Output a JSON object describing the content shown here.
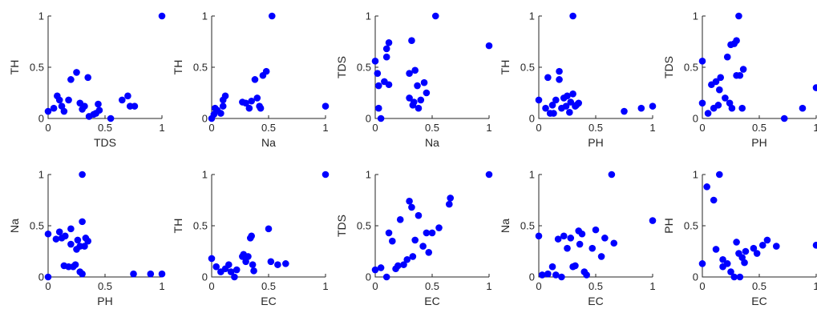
{
  "colors": {
    "marker": "#0000FF",
    "axis": "#262626",
    "background": "#FFFFFF"
  },
  "chart_data": [
    {
      "type": "scatter",
      "xlabel": "TDS",
      "ylabel": "TH",
      "xlim": [
        0,
        1
      ],
      "ylim": [
        0,
        1
      ],
      "xticks": [
        "0",
        "0.5",
        "1"
      ],
      "yticks": [
        "0",
        "0.5",
        "1"
      ],
      "points": [
        [
          0,
          0.07
        ],
        [
          0.05,
          0.1
        ],
        [
          0.08,
          0.22
        ],
        [
          0.1,
          0.18
        ],
        [
          0.12,
          0.12
        ],
        [
          0.14,
          0.07
        ],
        [
          0.18,
          0.18
        ],
        [
          0.2,
          0.38
        ],
        [
          0.25,
          0.45
        ],
        [
          0.28,
          0.15
        ],
        [
          0.3,
          0.09
        ],
        [
          0.32,
          0.12
        ],
        [
          0.35,
          0.4
        ],
        [
          0.36,
          0.02
        ],
        [
          0.4,
          0.04
        ],
        [
          0.42,
          0.05
        ],
        [
          0.44,
          0.14
        ],
        [
          0.45,
          0.08
        ],
        [
          0.55,
          0
        ],
        [
          0.65,
          0.18
        ],
        [
          0.7,
          0.22
        ],
        [
          0.72,
          0.12
        ],
        [
          0.76,
          0.12
        ],
        [
          1,
          1
        ]
      ]
    },
    {
      "type": "scatter",
      "xlabel": "Na",
      "ylabel": "TH",
      "xlim": [
        0,
        1
      ],
      "ylim": [
        0,
        1
      ],
      "xticks": [
        "0",
        "0.5",
        "1"
      ],
      "yticks": [
        "0",
        "0.5",
        "1"
      ],
      "points": [
        [
          0,
          0
        ],
        [
          0.02,
          0.04
        ],
        [
          0.03,
          0.1
        ],
        [
          0.05,
          0.08
        ],
        [
          0.08,
          0.05
        ],
        [
          0.1,
          0.18
        ],
        [
          0.12,
          0.22
        ],
        [
          0.1,
          0.12
        ],
        [
          0.27,
          0.16
        ],
        [
          0.3,
          0.15
        ],
        [
          0.33,
          0.1
        ],
        [
          0.35,
          0.17
        ],
        [
          0.38,
          0.38
        ],
        [
          0.4,
          0.2
        ],
        [
          0.42,
          0.12
        ],
        [
          0.43,
          0.1
        ],
        [
          0.45,
          0.42
        ],
        [
          0.48,
          0.46
        ],
        [
          0.53,
          1
        ],
        [
          1,
          0.12
        ]
      ]
    },
    {
      "type": "scatter",
      "xlabel": "Na",
      "ylabel": "TDS",
      "xlim": [
        0,
        1
      ],
      "ylim": [
        0,
        1
      ],
      "xticks": [
        "0",
        "0.5",
        "1"
      ],
      "yticks": [
        "0",
        "0.5",
        "1"
      ],
      "points": [
        [
          0,
          0.56
        ],
        [
          0.02,
          0.44
        ],
        [
          0.03,
          0.32
        ],
        [
          0.03,
          0.1
        ],
        [
          0.05,
          0
        ],
        [
          0.08,
          0.36
        ],
        [
          0.1,
          0.6
        ],
        [
          0.1,
          0.68
        ],
        [
          0.12,
          0.74
        ],
        [
          0.12,
          0.33
        ],
        [
          0.3,
          0.44
        ],
        [
          0.3,
          0.2
        ],
        [
          0.32,
          0.76
        ],
        [
          0.33,
          0.13
        ],
        [
          0.34,
          0.16
        ],
        [
          0.35,
          0.47
        ],
        [
          0.37,
          0.32
        ],
        [
          0.38,
          0.1
        ],
        [
          0.4,
          0.18
        ],
        [
          0.43,
          0.35
        ],
        [
          0.45,
          0.25
        ],
        [
          0.53,
          1
        ],
        [
          1,
          0.71
        ]
      ]
    },
    {
      "type": "scatter",
      "xlabel": "PH",
      "ylabel": "TH",
      "xlim": [
        0,
        1
      ],
      "ylim": [
        0,
        1
      ],
      "xticks": [
        "0",
        "0.5",
        "1"
      ],
      "yticks": [
        "0",
        "0.5",
        "1"
      ],
      "points": [
        [
          0,
          0.18
        ],
        [
          0.06,
          0.1
        ],
        [
          0.08,
          0.4
        ],
        [
          0.1,
          0.05
        ],
        [
          0.12,
          0.13
        ],
        [
          0.13,
          0.05
        ],
        [
          0.15,
          0.18
        ],
        [
          0.18,
          0.46
        ],
        [
          0.18,
          0.38
        ],
        [
          0.2,
          0.1
        ],
        [
          0.22,
          0.2
        ],
        [
          0.24,
          0.12
        ],
        [
          0.25,
          0.22
        ],
        [
          0.27,
          0.06
        ],
        [
          0.28,
          0.16
        ],
        [
          0.3,
          1
        ],
        [
          0.3,
          0.24
        ],
        [
          0.32,
          0.12
        ],
        [
          0.33,
          0.13
        ],
        [
          0.35,
          0.15
        ],
        [
          0.75,
          0.07
        ],
        [
          0.9,
          0.1
        ],
        [
          1,
          0.12
        ]
      ]
    },
    {
      "type": "scatter",
      "xlabel": "PH",
      "ylabel": "TDS",
      "xlim": [
        0,
        1
      ],
      "ylim": [
        0,
        1
      ],
      "xticks": [
        "0",
        "0.5",
        "1"
      ],
      "yticks": [
        "0",
        "0.5",
        "1"
      ],
      "points": [
        [
          0,
          0.56
        ],
        [
          0,
          0.15
        ],
        [
          0.05,
          0.05
        ],
        [
          0.08,
          0.33
        ],
        [
          0.1,
          0.1
        ],
        [
          0.12,
          0.36
        ],
        [
          0.14,
          0.13
        ],
        [
          0.15,
          0.28
        ],
        [
          0.16,
          0.4
        ],
        [
          0.2,
          0.2
        ],
        [
          0.22,
          0.6
        ],
        [
          0.24,
          0.15
        ],
        [
          0.25,
          0.72
        ],
        [
          0.26,
          0.1
        ],
        [
          0.28,
          0.73
        ],
        [
          0.3,
          0.42
        ],
        [
          0.3,
          0.76
        ],
        [
          0.32,
          1
        ],
        [
          0.33,
          0.42
        ],
        [
          0.35,
          0.1
        ],
        [
          0.36,
          0.48
        ],
        [
          0.72,
          0
        ],
        [
          0.88,
          0.1
        ],
        [
          1,
          0.3
        ]
      ]
    },
    {
      "type": "scatter",
      "xlabel": "PH",
      "ylabel": "Na",
      "xlim": [
        0,
        1
      ],
      "ylim": [
        0,
        1
      ],
      "xticks": [
        "0",
        "0.5",
        "1"
      ],
      "yticks": [
        "0",
        "0.5",
        "1"
      ],
      "points": [
        [
          0,
          0.42
        ],
        [
          0,
          0
        ],
        [
          0.07,
          0.37
        ],
        [
          0.1,
          0.44
        ],
        [
          0.12,
          0.38
        ],
        [
          0.15,
          0.4
        ],
        [
          0.14,
          0.11
        ],
        [
          0.18,
          0.1
        ],
        [
          0.2,
          0.32
        ],
        [
          0.2,
          0.47
        ],
        [
          0.22,
          0.1
        ],
        [
          0.24,
          0.12
        ],
        [
          0.25,
          0.27
        ],
        [
          0.26,
          0.36
        ],
        [
          0.28,
          0.3
        ],
        [
          0.28,
          0.05
        ],
        [
          0.3,
          1
        ],
        [
          0.3,
          0.03
        ],
        [
          0.3,
          0.54
        ],
        [
          0.32,
          0.3
        ],
        [
          0.33,
          0.38
        ],
        [
          0.35,
          0.35
        ],
        [
          0.75,
          0.03
        ],
        [
          0.9,
          0.03
        ],
        [
          1,
          0.03
        ]
      ]
    },
    {
      "type": "scatter",
      "xlabel": "EC",
      "ylabel": "TH",
      "xlim": [
        0,
        1
      ],
      "ylim": [
        0,
        1
      ],
      "xticks": [
        "0",
        "0.5",
        "1"
      ],
      "yticks": [
        "0",
        "0.5",
        "1"
      ],
      "points": [
        [
          0,
          0.18
        ],
        [
          0.04,
          0.1
        ],
        [
          0.08,
          0.05
        ],
        [
          0.12,
          0.08
        ],
        [
          0.15,
          0.12
        ],
        [
          0.17,
          0.05
        ],
        [
          0.2,
          0
        ],
        [
          0.22,
          0.07
        ],
        [
          0.27,
          0.2
        ],
        [
          0.28,
          0.22
        ],
        [
          0.3,
          0.15
        ],
        [
          0.32,
          0.2
        ],
        [
          0.34,
          0.38
        ],
        [
          0.35,
          0.4
        ],
        [
          0.36,
          0.12
        ],
        [
          0.37,
          0.06
        ],
        [
          0.5,
          0.47
        ],
        [
          0.52,
          0.15
        ],
        [
          0.58,
          0.12
        ],
        [
          0.65,
          0.13
        ],
        [
          1,
          1
        ]
      ]
    },
    {
      "type": "scatter",
      "xlabel": "EC",
      "ylabel": "TDS",
      "xlim": [
        0,
        1
      ],
      "ylim": [
        0,
        1
      ],
      "xticks": [
        "0",
        "0.5",
        "1"
      ],
      "yticks": [
        "0",
        "0.5",
        "1"
      ],
      "points": [
        [
          0,
          0.07
        ],
        [
          0.05,
          0.09
        ],
        [
          0.1,
          0
        ],
        [
          0.12,
          0.43
        ],
        [
          0.15,
          0.35
        ],
        [
          0.18,
          0.08
        ],
        [
          0.2,
          0.11
        ],
        [
          0.22,
          0.56
        ],
        [
          0.25,
          0.12
        ],
        [
          0.28,
          0.17
        ],
        [
          0.3,
          0.74
        ],
        [
          0.32,
          0.68
        ],
        [
          0.33,
          0.2
        ],
        [
          0.35,
          0.36
        ],
        [
          0.38,
          0.6
        ],
        [
          0.42,
          0.3
        ],
        [
          0.45,
          0.43
        ],
        [
          0.47,
          0.24
        ],
        [
          0.5,
          0.43
        ],
        [
          0.56,
          0.48
        ],
        [
          0.65,
          0.71
        ],
        [
          0.66,
          0.77
        ],
        [
          1,
          1
        ]
      ]
    },
    {
      "type": "scatter",
      "xlabel": "EC",
      "ylabel": "Na",
      "xlim": [
        0,
        1
      ],
      "ylim": [
        0,
        1
      ],
      "xticks": [
        "0",
        "0.5",
        "1"
      ],
      "yticks": [
        "0",
        "0.5",
        "1"
      ],
      "points": [
        [
          0,
          0.4
        ],
        [
          0.03,
          0.02
        ],
        [
          0.08,
          0.03
        ],
        [
          0.12,
          0.1
        ],
        [
          0.15,
          0.02
        ],
        [
          0.17,
          0.37
        ],
        [
          0.2,
          0
        ],
        [
          0.22,
          0.4
        ],
        [
          0.25,
          0.28
        ],
        [
          0.28,
          0.38
        ],
        [
          0.3,
          0.1
        ],
        [
          0.32,
          0.11
        ],
        [
          0.35,
          0.45
        ],
        [
          0.36,
          0.32
        ],
        [
          0.38,
          0.42
        ],
        [
          0.4,
          0.05
        ],
        [
          0.42,
          0.02
        ],
        [
          0.47,
          0.28
        ],
        [
          0.5,
          0.46
        ],
        [
          0.55,
          0.2
        ],
        [
          0.58,
          0.38
        ],
        [
          0.64,
          1
        ],
        [
          0.66,
          0.33
        ],
        [
          1,
          0.55
        ]
      ]
    },
    {
      "type": "scatter",
      "xlabel": "EC",
      "ylabel": "PH",
      "xlim": [
        0,
        1
      ],
      "ylim": [
        0,
        1
      ],
      "xticks": [
        "0",
        "0.5",
        "1"
      ],
      "yticks": [
        "0",
        "0.5",
        "1"
      ],
      "points": [
        [
          0,
          0.13
        ],
        [
          0.04,
          0.88
        ],
        [
          0.1,
          0.75
        ],
        [
          0.12,
          0.27
        ],
        [
          0.15,
          1
        ],
        [
          0.18,
          0.17
        ],
        [
          0.18,
          0.1
        ],
        [
          0.22,
          0.13
        ],
        [
          0.25,
          0.05
        ],
        [
          0.28,
          0
        ],
        [
          0.3,
          0.34
        ],
        [
          0.32,
          0.23
        ],
        [
          0.33,
          0
        ],
        [
          0.35,
          0.19
        ],
        [
          0.37,
          0.14
        ],
        [
          0.38,
          0.25
        ],
        [
          0.45,
          0.28
        ],
        [
          0.48,
          0.23
        ],
        [
          0.53,
          0.31
        ],
        [
          0.57,
          0.36
        ],
        [
          0.65,
          0.3
        ],
        [
          1,
          0.31
        ]
      ]
    }
  ]
}
